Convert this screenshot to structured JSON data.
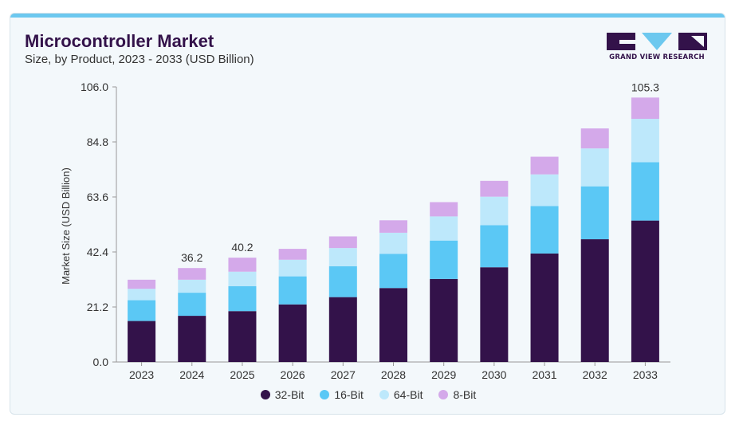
{
  "header": {
    "title": "Microcontroller Market",
    "subtitle": "Size, by Product, 2023 - 2033 (USD Billion)"
  },
  "logo": {
    "text": "GRAND VIEW RESEARCH",
    "colors": [
      "#33124a",
      "#6cc8ef"
    ]
  },
  "chart_data": {
    "type": "bar",
    "stacked": true,
    "title": "Microcontroller Market",
    "subtitle": "Size, by Product, 2023 - 2033 (USD Billion)",
    "xlabel": "",
    "ylabel": "Market Size (USD Billion)",
    "ylim": [
      0,
      106.0
    ],
    "yticks": [
      "0.0",
      "21.2",
      "42.4",
      "63.6",
      "84.8",
      "106.0"
    ],
    "grid": false,
    "legend_position": "bottom",
    "categories": [
      "2023",
      "2024",
      "2025",
      "2026",
      "2027",
      "2028",
      "2029",
      "2030",
      "2031",
      "2032",
      "2033"
    ],
    "series": [
      {
        "name": "32-Bit",
        "color": "#33124a",
        "values": [
          15.8,
          17.8,
          19.6,
          22.2,
          25.0,
          28.5,
          32.0,
          36.5,
          41.8,
          47.3,
          54.5
        ]
      },
      {
        "name": "16-Bit",
        "color": "#5bc8f5",
        "values": [
          8.0,
          8.9,
          9.6,
          10.8,
          11.9,
          13.2,
          14.8,
          16.2,
          18.3,
          20.4,
          22.5
        ]
      },
      {
        "name": "64-Bit",
        "color": "#bde8fb",
        "values": [
          4.4,
          5.0,
          5.6,
          6.4,
          7.0,
          8.1,
          9.3,
          11.0,
          12.2,
          14.6,
          16.7
        ]
      },
      {
        "name": "8-Bit",
        "color": "#d4a9ea",
        "values": [
          3.5,
          4.5,
          5.4,
          4.2,
          4.5,
          4.8,
          5.5,
          6.1,
          6.8,
          7.7,
          8.2
        ]
      }
    ],
    "data_labels": [
      {
        "category": "2024",
        "text": "36.2"
      },
      {
        "category": "2025",
        "text": "40.2"
      },
      {
        "category": "2033",
        "text": "105.3"
      }
    ]
  }
}
